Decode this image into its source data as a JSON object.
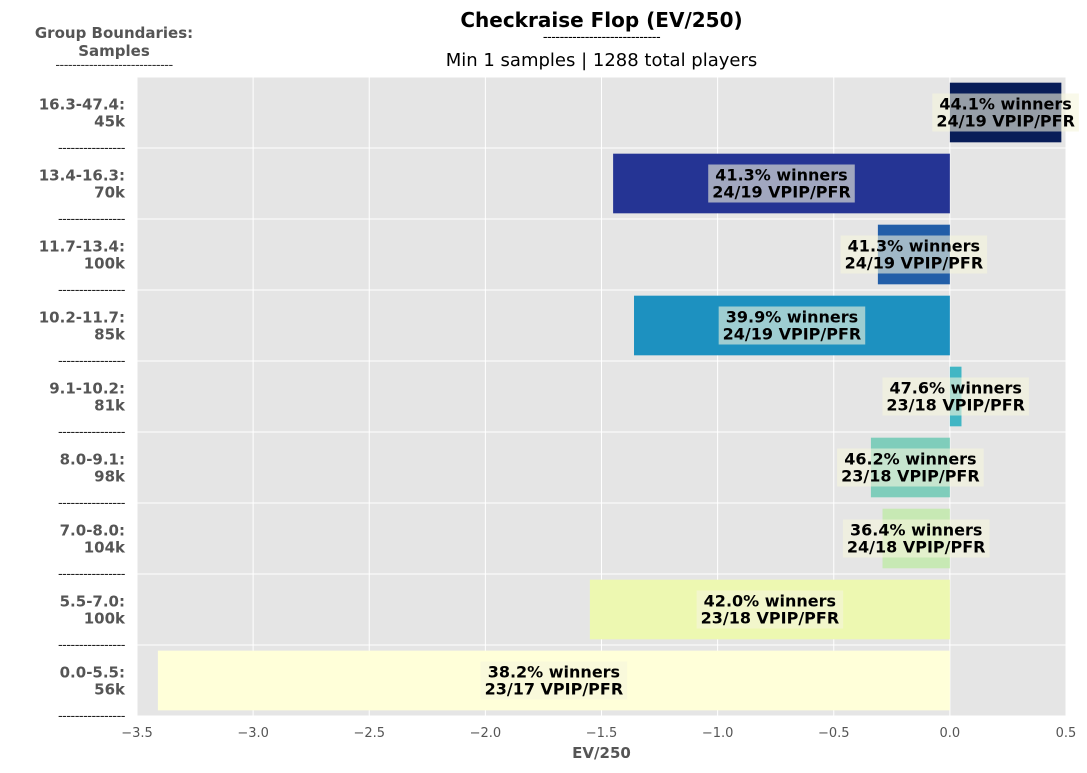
{
  "chart_data": {
    "type": "bar",
    "orientation": "horizontal",
    "title": "Checkraise Flop (EV/250)",
    "title_rule": "----------------------------",
    "subtitle": "Min 1 samples | 1288 total players",
    "ylabel": "Group Boundaries:\nSamples",
    "ylabel_rule": "----------------------------",
    "xlabel": "EV/250",
    "xlim": [
      -3.5,
      0.5
    ],
    "xticks": [
      -3.5,
      -3.0,
      -2.5,
      -2.0,
      -1.5,
      -1.0,
      -0.5,
      0.0,
      0.5
    ],
    "xtick_labels": [
      "−3.5",
      "−3.0",
      "−2.5",
      "−2.0",
      "−1.5",
      "−1.0",
      "−0.5",
      "0.0",
      "0.5"
    ],
    "grid": true,
    "separator": "----------------",
    "categories": [
      {
        "range": "16.3-47.4:",
        "samples": "45k",
        "value": 0.48,
        "winners": "44.1% winners",
        "vpip": "24/19 VPIP/PFR",
        "color": "#081d58"
      },
      {
        "range": "13.4-16.3:",
        "samples": "70k",
        "value": -1.45,
        "winners": "41.3% winners",
        "vpip": "24/19 VPIP/PFR",
        "color": "#253494"
      },
      {
        "range": "11.7-13.4:",
        "samples": "100k",
        "value": -0.31,
        "winners": "41.3% winners",
        "vpip": "24/19 VPIP/PFR",
        "color": "#225ea8"
      },
      {
        "range": "10.2-11.7:",
        "samples": "85k",
        "value": -1.36,
        "winners": "39.9% winners",
        "vpip": "24/19 VPIP/PFR",
        "color": "#1d91c0"
      },
      {
        "range": "9.1-10.2:",
        "samples": "81k",
        "value": 0.05,
        "winners": "47.6% winners",
        "vpip": "23/18 VPIP/PFR",
        "color": "#41b6c4"
      },
      {
        "range": "8.0-9.1:",
        "samples": "98k",
        "value": -0.34,
        "winners": "46.2% winners",
        "vpip": "23/18 VPIP/PFR",
        "color": "#7fcdbb"
      },
      {
        "range": "7.0-8.0:",
        "samples": "104k",
        "value": -0.29,
        "winners": "36.4% winners",
        "vpip": "24/18 VPIP/PFR",
        "color": "#c7e9b4"
      },
      {
        "range": "5.5-7.0:",
        "samples": "100k",
        "value": -1.55,
        "winners": "42.0% winners",
        "vpip": "23/18 VPIP/PFR",
        "color": "#edf8b1"
      },
      {
        "range": "0.0-5.5:",
        "samples": "56k",
        "value": -3.41,
        "winners": "38.2% winners",
        "vpip": "23/17 VPIP/PFR",
        "color": "#ffffd9"
      }
    ]
  }
}
